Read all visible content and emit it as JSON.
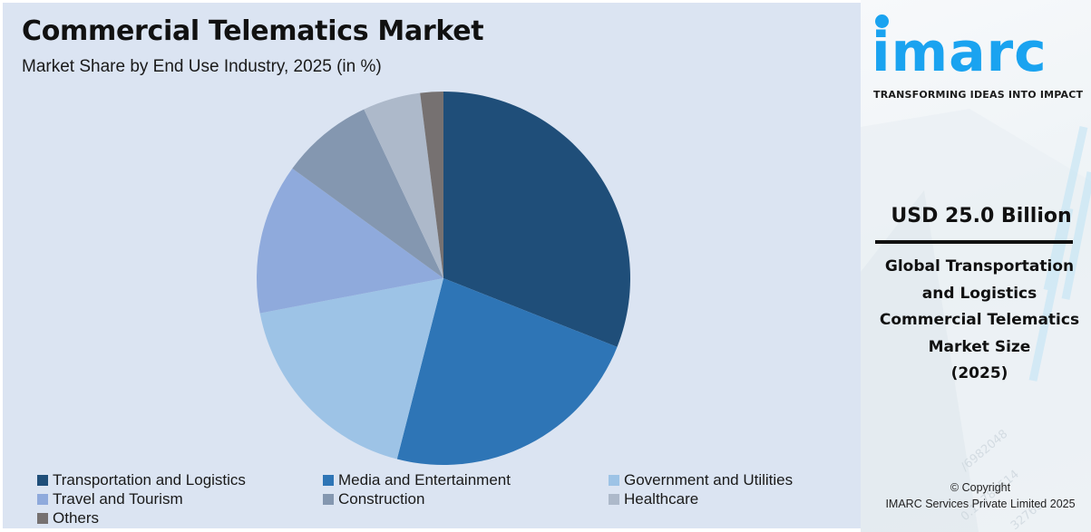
{
  "header": {
    "title": "Commercial Telematics Market",
    "subtitle": "Market Share by End Use Industry, 2025 (in %)"
  },
  "chart_data": {
    "type": "pie",
    "title": "Commercial Telematics Market",
    "subtitle": "Market Share by End Use Industry, 2025 (in %)",
    "categories": [
      "Transportation and Logistics",
      "Media and Entertainment",
      "Government and Utilities",
      "Travel and Tourism",
      "Construction",
      "Healthcare",
      "Others"
    ],
    "values": [
      31,
      23,
      18,
      13,
      8,
      5,
      2
    ],
    "colors": [
      "#1f4e79",
      "#2e75b6",
      "#9dc3e6",
      "#8faadc",
      "#8497b0",
      "#adb9ca",
      "#767171"
    ],
    "start_angle_deg": 0,
    "direction": "clockwise",
    "legend_position": "bottom",
    "data_labels": false
  },
  "legend": {
    "items": [
      {
        "label": "Transportation and Logistics",
        "color": "#1f4e79"
      },
      {
        "label": "Media and Entertainment",
        "color": "#2e75b6"
      },
      {
        "label": "Government and Utilities",
        "color": "#9dc3e6"
      },
      {
        "label": "Travel and Tourism",
        "color": "#8faadc"
      },
      {
        "label": "Construction",
        "color": "#8497b0"
      },
      {
        "label": "Healthcare",
        "color": "#adb9ca"
      },
      {
        "label": "Others",
        "color": "#767171"
      }
    ]
  },
  "sidebar": {
    "logo_text": "imarc",
    "tagline": "TRANSFORMING IDEAS INTO IMPACT",
    "market_value": "USD 25.0 Billion",
    "market_desc_lines": [
      "Global Transportation",
      "and Logistics",
      "Commercial Telematics",
      "Market Size",
      "(2025)"
    ],
    "copyright_line1": "© Copyright",
    "copyright_line2": "IMARC Services Private Limited 2025"
  },
  "colors": {
    "panel_bg": "#dbe4f2",
    "brand_blue": "#1aa3f0"
  }
}
